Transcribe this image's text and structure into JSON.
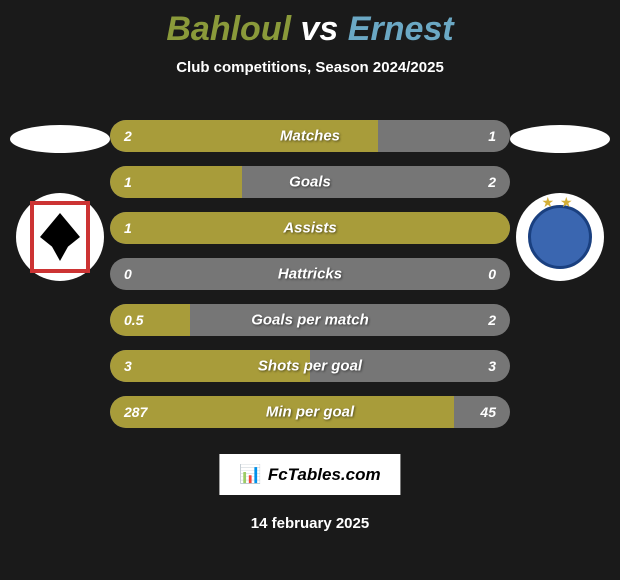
{
  "title": {
    "left": "Bahloul",
    "vs": "vs",
    "right": "Ernest"
  },
  "subtitle": "Club competitions, Season 2024/2025",
  "colors": {
    "left_bar": "#a89c3a",
    "right_bar": "#767676",
    "bg_bar": "#767676",
    "title_left": "#8a9a3a",
    "title_right": "#6ba8c4"
  },
  "stats": [
    {
      "label": "Matches",
      "left_value": "2",
      "right_value": "1",
      "left_pct": 67,
      "right_pct": 0
    },
    {
      "label": "Goals",
      "left_value": "1",
      "right_value": "2",
      "left_pct": 33,
      "right_pct": 0
    },
    {
      "label": "Assists",
      "left_value": "1",
      "right_value": "",
      "left_pct": 100,
      "right_pct": 0
    },
    {
      "label": "Hattricks",
      "left_value": "0",
      "right_value": "0",
      "left_pct": 0,
      "right_pct": 0
    },
    {
      "label": "Goals per match",
      "left_value": "0.5",
      "right_value": "2",
      "left_pct": 20,
      "right_pct": 0
    },
    {
      "label": "Shots per goal",
      "left_value": "3",
      "right_value": "3",
      "left_pct": 50,
      "right_pct": 0
    },
    {
      "label": "Min per goal",
      "left_value": "287",
      "right_value": "45",
      "left_pct": 86,
      "right_pct": 0
    }
  ],
  "watermark": "FcTables.com",
  "date": "14 february 2025"
}
